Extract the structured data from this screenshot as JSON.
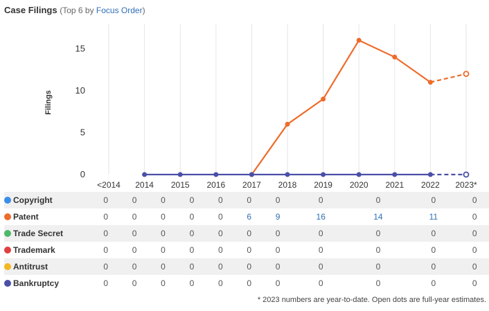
{
  "header": {
    "title": "Case Filings",
    "subtitle_prefix": "(Top 6 by ",
    "subtitle_link": "Focus Order",
    "subtitle_suffix": ")"
  },
  "chart_data": {
    "type": "line",
    "ylabel": "Filings",
    "xlabel": "",
    "ylim": [
      0,
      17.5
    ],
    "yticks": [
      0,
      5,
      10,
      15
    ],
    "categories": [
      "<2014",
      "2014",
      "2015",
      "2016",
      "2017",
      "2018",
      "2019",
      "2020",
      "2021",
      "2022",
      "2023*"
    ],
    "series": [
      {
        "name": "Copyright",
        "color": "#3b8ee8",
        "values": [
          0,
          0,
          0,
          0,
          0,
          0,
          0,
          0,
          0,
          0,
          0
        ]
      },
      {
        "name": "Patent",
        "color": "#ee6b2a",
        "values": [
          0,
          0,
          0,
          0,
          0,
          6,
          9,
          16,
          14,
          11,
          0
        ],
        "estimate": 12
      },
      {
        "name": "Trade Secret",
        "color": "#4fb96a",
        "values": [
          0,
          0,
          0,
          0,
          0,
          0,
          0,
          0,
          0,
          0,
          0
        ]
      },
      {
        "name": "Trademark",
        "color": "#e04040",
        "values": [
          0,
          0,
          0,
          0,
          0,
          0,
          0,
          0,
          0,
          0,
          0
        ]
      },
      {
        "name": "Antitrust",
        "color": "#f5b722",
        "values": [
          0,
          0,
          0,
          0,
          0,
          0,
          0,
          0,
          0,
          0,
          0
        ]
      },
      {
        "name": "Bankruptcy",
        "color": "#4a4fa8",
        "values": [
          0,
          0,
          0,
          0,
          0,
          0,
          0,
          0,
          0,
          0,
          0
        ],
        "estimate": 0
      }
    ]
  },
  "footnote": "* 2023 numbers are year-to-date. Open dots are full-year estimates."
}
